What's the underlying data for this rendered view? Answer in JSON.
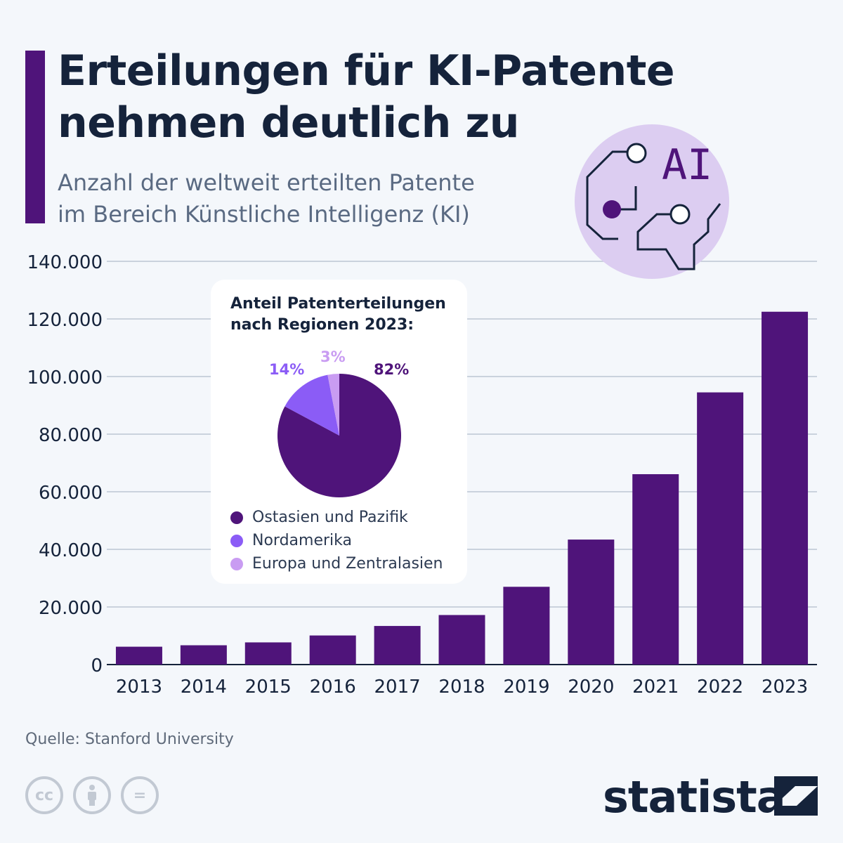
{
  "header": {
    "title_line1": "Erteilungen für KI-Patente",
    "title_line2": "nehmen deutlich zu",
    "subtitle_line1": "Anzahl der weltweit erteilten Patente",
    "subtitle_line2": "im Bereich Künstliche Intelligenz (KI)"
  },
  "icon": {
    "text": "AI"
  },
  "chart_data": [
    {
      "type": "bar",
      "categories": [
        "2013",
        "2014",
        "2015",
        "2016",
        "2017",
        "2018",
        "2019",
        "2020",
        "2021",
        "2022",
        "2023"
      ],
      "values": [
        6200,
        6700,
        7700,
        10100,
        13400,
        17200,
        27000,
        43400,
        66100,
        94500,
        122500
      ],
      "ylim": [
        0,
        140000
      ],
      "yticks": [
        0,
        20000,
        40000,
        60000,
        80000,
        100000,
        120000,
        140000
      ],
      "ytick_labels": [
        "0",
        "20.000",
        "40.000",
        "60.000",
        "80.000",
        "100.000",
        "120.000",
        "140.000"
      ],
      "color": "#4f147a",
      "grid": true
    },
    {
      "type": "pie",
      "title_line1": "Anteil Patenterteilungen",
      "title_line2": "nach Regionen 2023:",
      "labels": [
        "Ostasien und Pazifik",
        "Nordamerika",
        "Europa und Zentralasien"
      ],
      "values": [
        82,
        14,
        3
      ],
      "value_labels": [
        "82%",
        "14%",
        "3%"
      ],
      "colors": [
        "#4f147a",
        "#8b5cf6",
        "#c99cf2"
      ]
    }
  ],
  "footer": {
    "source": "Quelle: Stanford University",
    "brand": "statista",
    "cc": "cc",
    "eq": "="
  }
}
